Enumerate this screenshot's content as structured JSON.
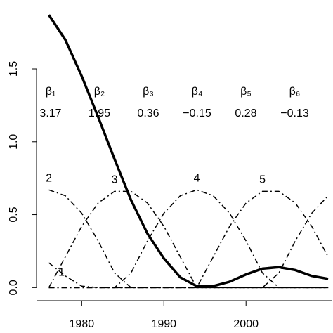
{
  "chart_data": {
    "type": "line",
    "x": [
      1976,
      1978,
      1980,
      1982,
      1984,
      1986,
      1988,
      1990,
      1992,
      1994,
      1996,
      1998,
      2000,
      2002,
      2004,
      2006,
      2008,
      2010
    ],
    "series": [
      {
        "color": "#000000",
        "width": 3.5,
        "dash": "none",
        "values": [
          1.87,
          1.7,
          1.45,
          1.17,
          0.88,
          0.6,
          0.37,
          0.2,
          0.07,
          0.01,
          0.01,
          0.04,
          0.09,
          0.13,
          0.14,
          0.12,
          0.08,
          0.06
        ]
      },
      {
        "name": "1",
        "color": "#000000",
        "width": 1.5,
        "dash": "8 4 2 4",
        "values": [
          0.17,
          0.08,
          0.01,
          0,
          0,
          0,
          0,
          0,
          0,
          0,
          0,
          0,
          0,
          0,
          0,
          0,
          0,
          0
        ]
      },
      {
        "name": "2",
        "color": "#000000",
        "width": 1.5,
        "dash": "8 4 2 4",
        "values": [
          0.67,
          0.63,
          0.51,
          0.32,
          0.1,
          0,
          0,
          0,
          0,
          0,
          0,
          0,
          0,
          0,
          0,
          0,
          0,
          0
        ]
      },
      {
        "name": "3",
        "color": "#000000",
        "width": 1.5,
        "dash": "8 4 2 4",
        "values": [
          0,
          0.21,
          0.42,
          0.58,
          0.66,
          0.66,
          0.58,
          0.42,
          0.21,
          0,
          0,
          0,
          0,
          0,
          0,
          0,
          0,
          0
        ]
      },
      {
        "name": "4",
        "color": "#000000",
        "width": 1.5,
        "dash": "8 4 2 4",
        "values": [
          0,
          0,
          0,
          0,
          0,
          0.1,
          0.32,
          0.51,
          0.63,
          0.67,
          0.63,
          0.51,
          0.32,
          0.1,
          0,
          0,
          0,
          0
        ]
      },
      {
        "name": "5",
        "color": "#000000",
        "width": 1.5,
        "dash": "8 4 2 4",
        "values": [
          0,
          0,
          0,
          0,
          0,
          0,
          0,
          0,
          0,
          0,
          0.21,
          0.42,
          0.58,
          0.66,
          0.66,
          0.58,
          0.42,
          0.21
        ]
      },
      {
        "color": "#000000",
        "width": 1.5,
        "dash": "8 4 2 4",
        "values": [
          0,
          0,
          0,
          0,
          0,
          0,
          0,
          0,
          0,
          0,
          0,
          0,
          0,
          0,
          0.1,
          0.32,
          0.51,
          0.63
        ]
      }
    ],
    "annotations": [
      {
        "symbol": "β₁",
        "value": "3.17"
      },
      {
        "symbol": "β₂",
        "value": "1.95"
      },
      {
        "symbol": "β₃",
        "value": "0.36"
      },
      {
        "symbol": "β₄",
        "value": "−0.15"
      },
      {
        "symbol": "β₅",
        "value": "0.28"
      },
      {
        "symbol": "β₆",
        "value": "−0.13"
      }
    ],
    "xlim": [
      1974.5,
      2010.5
    ],
    "xticks": [
      1980,
      1990,
      2000
    ],
    "ylim": [
      -0.09,
      1.9
    ],
    "yticks": [
      {
        "value": 0,
        "label": "0.0"
      },
      0.5,
      {
        "value": 1,
        "label": "1.0"
      },
      1.5
    ]
  }
}
